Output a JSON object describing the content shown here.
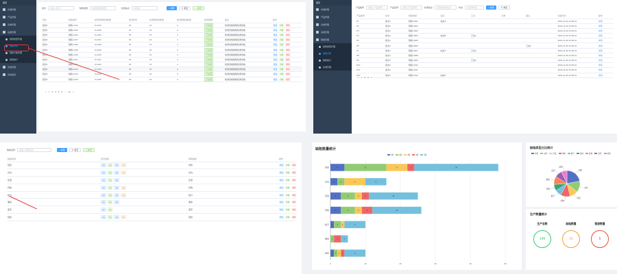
{
  "sidebar": {
    "brand": "首页",
    "items": [
      {
        "label": "仓储管理",
        "icon": "home-icon"
      },
      {
        "label": "产品管理",
        "icon": "box-icon"
      },
      {
        "label": "系统管理",
        "icon": "gear-icon"
      },
      {
        "label": "设备管理",
        "icon": "device-icon"
      },
      {
        "label": "缺陷管理",
        "icon": "warning-icon"
      }
    ],
    "subitems": [
      {
        "label": "缺陷类型管理",
        "active": false
      },
      {
        "label": "缺陷列表",
        "active": true
      },
      {
        "label": "缺陷计数管理",
        "active": false
      },
      {
        "label": "缺陷统计",
        "active": false
      }
    ],
    "tail_items": [
      {
        "label": "系统管理"
      },
      {
        "label": "系统监控"
      }
    ]
  },
  "main1": {
    "search": {
      "label1": "批次",
      "placeholder1": "请输入批次",
      "label2": "缺陷类型",
      "placeholder2": "请选择缺陷类型",
      "label3": "检测站点",
      "placeholder3": "请选择",
      "search_btn": "搜索",
      "reset_btn": "重置",
      "add_btn": "新增"
    },
    "columns": [
      "批次",
      "缺陷编号",
      "检测到缺陷的数量",
      "检测时间",
      "检测缺陷的数量",
      "检测缺陷的数量",
      "检测结果",
      "备注",
      "操作"
    ],
    "rows": [
      [
        "批次1",
        "缺陷-1234",
        "23",
        "12",
        "4",
        "已处理",
        "检测合格缺陷检测合格"
      ],
      [
        "批次1",
        "缺陷-1235",
        "21",
        "10",
        "4",
        "已处理",
        "检测合格缺陷检测合格"
      ],
      [
        "批次1",
        "缺陷-1236",
        "23",
        "10",
        "4",
        "已处理",
        "检测合格缺陷检测合格"
      ],
      [
        "批次1",
        "缺陷-1237",
        "22",
        "10",
        "4",
        "已处理",
        "检测合格缺陷检测合格"
      ],
      [
        "批次1",
        "缺陷-1238",
        "23",
        "10",
        "4",
        "已处理",
        "检测合格缺陷检测合格"
      ],
      [
        "批次1",
        "缺陷-1239",
        "20",
        "10",
        "4",
        "已处理",
        "检测合格缺陷检测合格"
      ],
      [
        "批次1",
        "缺陷-1240",
        "23",
        "10",
        "4",
        "已处理",
        "检测合格缺陷检测合格"
      ],
      [
        "批次1",
        "缺陷-1241",
        "23",
        "10",
        "4",
        "已处理",
        "检测合格缺陷检测合格"
      ],
      [
        "批次1",
        "缺陷-1242",
        "23",
        "10",
        "4",
        "已处理",
        "检测合格缺陷检测合格"
      ],
      [
        "批次1",
        "缺陷-1243",
        "23",
        "10",
        "4",
        "已处理",
        "检测合格缺陷检测合格"
      ],
      [
        "批次1",
        "缺陷-1244",
        "23",
        "10",
        "4",
        "已处理",
        "检测合格缺陷检测合格"
      ],
      [
        "批次1",
        "缺陷-1245",
        "23",
        "10",
        "4",
        "已处理",
        "检测合格缺陷检测合格"
      ]
    ],
    "ops": [
      "修改",
      "详情",
      "删除"
    ],
    "pager": [
      "<",
      "1",
      "2",
      "3",
      "4",
      "5",
      "...",
      "11",
      ">"
    ]
  },
  "right_top": {
    "search": {
      "label1": "产品编号",
      "placeholder1": "请输入产品编号",
      "label2": "产品名称",
      "placeholder2": "请输入产品名称",
      "label3": "检测站点",
      "placeholder3": "请选择检测站点",
      "label4": "状态",
      "placeholder4": "请选择状态",
      "search_btn": "搜索",
      "reset_btn": "重置"
    },
    "columns": [
      "产品编号",
      "批次",
      "缺陷类型",
      "站点",
      "工位",
      "记录",
      "备注",
      "创建时间",
      "操作"
    ],
    "rows": [
      [
        "P1",
        "批次1",
        "缺陷-0001",
        "站点A",
        "",
        "",
        "",
        "2023-11-30 10:00:21",
        "详情"
      ],
      [
        "P2",
        "批次1",
        "缺陷-0002",
        "",
        "",
        "",
        "",
        "2023-11-30 10:00:21",
        "详情"
      ],
      [
        "P3",
        "批次1",
        "缺陷-0003",
        "",
        "",
        "",
        "",
        "2023-11-30 10:00:21",
        "详情"
      ],
      [
        "P4",
        "批次1",
        "缺陷-0004",
        "站点B",
        "工位1",
        "",
        "",
        "2023-11-30 10:00:21",
        "详情"
      ],
      [
        "P5",
        "批次1",
        "缺陷-0005",
        "",
        "",
        "",
        "",
        "2023-11-30 10:00:21",
        "详情"
      ],
      [
        "P6",
        "批次1",
        "缺陷-0006",
        "",
        "",
        "",
        "工位2",
        "2023-11-30 10:00:21",
        "详情"
      ],
      [
        "P7",
        "批次1",
        "缺陷-0007",
        "站点C",
        "工位3",
        "",
        "",
        "2023-11-30 10:00:21",
        "详情"
      ],
      [
        "P8",
        "批次1",
        "缺陷-0008",
        "",
        "",
        "",
        "",
        "2023-11-30 10:00:21",
        "详情"
      ],
      [
        "P9",
        "批次1",
        "缺陷-0009",
        "",
        "工位4",
        "",
        "",
        "2023-11-30 10:00:21",
        "详情"
      ],
      [
        "P10",
        "批次1",
        "缺陷-0010",
        "",
        "",
        "",
        "",
        "2023-11-30 10:00:21",
        "详情"
      ],
      [
        "P11",
        "批次1",
        "缺陷-0011",
        "",
        "",
        "",
        "",
        "2023-11-30 10:00:21",
        "详情"
      ],
      [
        "P12",
        "批次1",
        "缺陷-0012",
        "站点D",
        "",
        "",
        "",
        "2023-11-30 10:00:21",
        "详情"
      ]
    ],
    "sidebar": {
      "items": [
        "仓储管理",
        "产品管理",
        "系统管理",
        "设备管理",
        "缺陷管理"
      ],
      "subitems": [
        "缺陷类型管理",
        "缺陷记录",
        "缺陷统计",
        "系统管理"
      ]
    },
    "pager": [
      "<",
      "1",
      "2",
      "3",
      ">"
    ]
  },
  "bottom_left": {
    "search": {
      "label": "缺陷名称",
      "placeholder": "请输入缺陷名称",
      "search_btn": "搜索",
      "reset_btn": "重置",
      "add_btn": "新增"
    },
    "columns": [
      "缺陷名称",
      "显示类别",
      "缺陷描述",
      "操作"
    ],
    "rows": [
      {
        "name": "划伤",
        "chips": [
          "1级",
          "2级",
          "3级",
          "4级"
        ],
        "desc": "划伤"
      },
      {
        "name": "凹坑",
        "chips": [
          "1级",
          "2级",
          "3级",
          "4级"
        ],
        "desc": "凹坑"
      },
      {
        "name": "压痕",
        "chips": [
          "1级",
          "2级",
          "3级"
        ],
        "desc": "压痕"
      },
      {
        "name": "异物",
        "chips": [
          "1级",
          "2级",
          "3级",
          "4级"
        ],
        "desc": "异物"
      },
      {
        "name": "脏污",
        "chips": [
          "1级",
          "2级",
          "3级",
          "4级"
        ],
        "desc": "脏污"
      },
      {
        "name": "漏涂",
        "chips": [
          "1级",
          "2级",
          "3级"
        ],
        "desc": "漏涂"
      },
      {
        "name": "变形",
        "chips": [
          "1级",
          "2级"
        ],
        "desc": "变形"
      },
      {
        "name": "裂纹",
        "chips": [
          "1级",
          "2级",
          "3级",
          "4级"
        ],
        "desc": "裂纹"
      }
    ],
    "ops": [
      "修改",
      "详情",
      "删除"
    ]
  },
  "chart_data": [
    {
      "type": "bar",
      "title": "缺陷数量统计",
      "orientation": "horizontal",
      "stacked": true,
      "categories": [
        "划伤",
        "凹坑",
        "压痕",
        "异物",
        "脏污",
        "漏涂",
        "裂纹"
      ],
      "series": [
        {
          "name": "1级",
          "color": "#5470c6",
          "values": [
            4,
            2,
            3,
            3,
            1,
            0,
            1
          ]
        },
        {
          "name": "2级",
          "color": "#91cc75",
          "values": [
            12,
            2,
            4,
            4,
            2,
            1,
            1
          ]
        },
        {
          "name": "3级",
          "color": "#fac858",
          "values": [
            6,
            6,
            2,
            2,
            1,
            0,
            1
          ]
        },
        {
          "name": "4级",
          "color": "#ee6666",
          "values": [
            2,
            0,
            2,
            3,
            0,
            2,
            1
          ]
        },
        {
          "name": "5级",
          "color": "#73c0de",
          "values": [
            24,
            6,
            14,
            14,
            6,
            2,
            6
          ]
        }
      ],
      "xlim": [
        0,
        50
      ],
      "xticks": [
        0,
        10,
        20,
        30,
        40,
        50
      ],
      "legend": "top-center",
      "grid": true
    },
    {
      "type": "pie",
      "title": "缺陷类型占比统计",
      "labels": [
        "划伤",
        "凹坑",
        "压痕",
        "异物",
        "脏污",
        "漏涂",
        "裂纹",
        "变形",
        "其他"
      ],
      "values": [
        22,
        14,
        10,
        12,
        8,
        8,
        10,
        9,
        7
      ],
      "colors": [
        "#5470c6",
        "#91cc75",
        "#fac858",
        "#ee6666",
        "#73c0de",
        "#3ba272",
        "#fc8452",
        "#9a60b4",
        "#ea7ccc"
      ],
      "legend": "top"
    }
  ],
  "stats": {
    "title": "生产数量统计",
    "items": [
      {
        "label": "生产总数",
        "value": "149",
        "color": "#2ecc71"
      },
      {
        "label": "缺陷数量",
        "value": "15",
        "color": "#f0a030"
      },
      {
        "label": "报废数量",
        "value": "5",
        "color": "#e74c3c"
      }
    ]
  }
}
